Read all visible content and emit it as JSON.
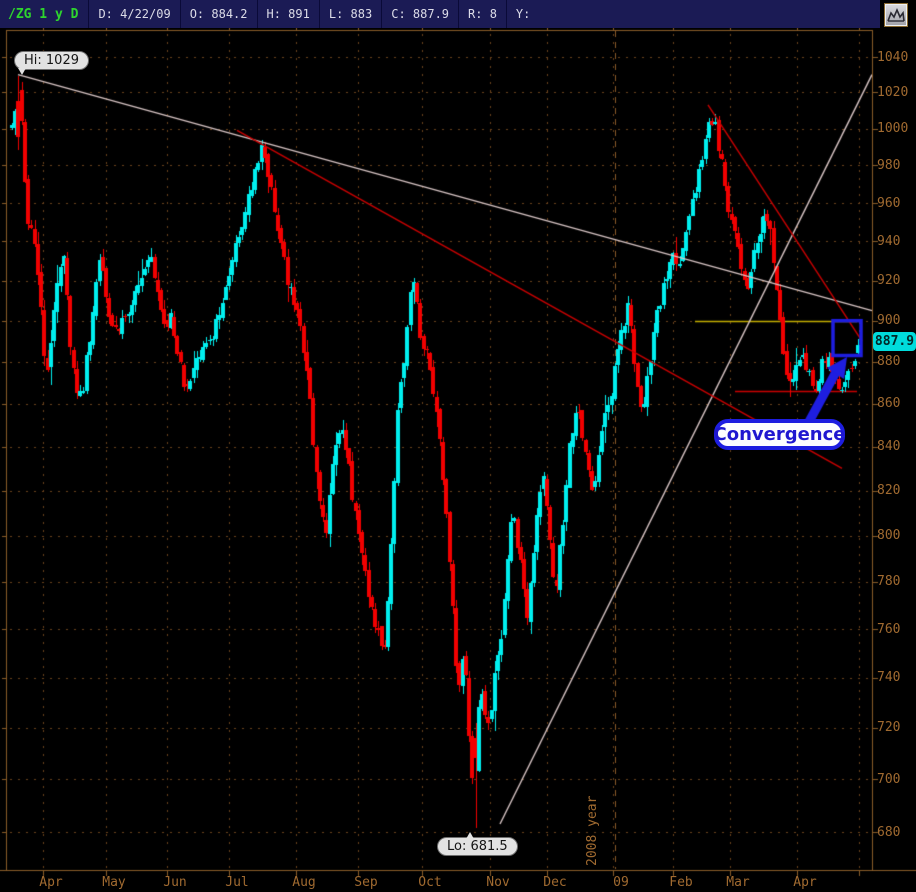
{
  "header": {
    "symbol": "/ZG 1 y D",
    "fields": [
      "D: 4/22/09",
      "O: 884.2",
      "H: 891",
      "L: 883",
      "C: 887.9",
      "R: 8",
      "Y:"
    ]
  },
  "toolbar": {
    "chart_button_icon": "chart-icon"
  },
  "annotations": {
    "hi_label": "Hi: 1029",
    "lo_label": "Lo: 681.5",
    "price_tag": "887.9",
    "convergence_label": "Convergence",
    "year_label": "2008 year"
  },
  "colors": {
    "background": "#000000",
    "header_bg": "#1b1b55",
    "header_text": "#dcdce8",
    "symbol_green": "#2ed52e",
    "axis_text": "#a06a30",
    "frame": "#8a5c28",
    "grid": "#6b431d",
    "year_line": "#8a5a28",
    "candle_up": "#00efef",
    "candle_down": "#f20000",
    "trend_white": "#d9c6c6",
    "trend_red": "#cc0000",
    "level_yellow": "#c4ae00",
    "annotation_blue": "#1e1ee0",
    "price_tag_bg": "#00dcdc"
  },
  "chart_data": {
    "type": "candlestick",
    "symbol": "/ZG",
    "range": "1 y",
    "interval": "D",
    "scale": "log",
    "grid": true,
    "ylim": [
      680,
      1040
    ],
    "ytick_step": 20,
    "high_52w": 1029,
    "low_52w": 681.5,
    "last_quote": {
      "date": "4/22/09",
      "open": 884.2,
      "high": 891,
      "low": 883,
      "close": 887.9,
      "range": 8
    },
    "months": [
      [
        "Apr",
        43
      ],
      [
        "May",
        106
      ],
      [
        "Jun",
        167
      ],
      [
        "Jul",
        229
      ],
      [
        "Aug",
        296
      ],
      [
        "Sep",
        358
      ],
      [
        "Oct",
        422
      ],
      [
        "Nov",
        490
      ],
      [
        "Dec",
        547
      ],
      [
        "09",
        613
      ],
      [
        "Feb",
        673
      ],
      [
        "Mar",
        730
      ],
      [
        "Apr",
        797
      ],
      [
        "",
        859
      ]
    ],
    "year_divider_x": 615,
    "candle_count": 262,
    "x_range": [
      12,
      858
    ],
    "price_path_anchors": [
      [
        12,
        1000
      ],
      [
        20,
        1024
      ],
      [
        27,
        950
      ],
      [
        34,
        940
      ],
      [
        40,
        915
      ],
      [
        46,
        870
      ],
      [
        52,
        895
      ],
      [
        58,
        922
      ],
      [
        64,
        930
      ],
      [
        70,
        890
      ],
      [
        76,
        868
      ],
      [
        82,
        862
      ],
      [
        88,
        885
      ],
      [
        95,
        915
      ],
      [
        101,
        933
      ],
      [
        107,
        910
      ],
      [
        113,
        898
      ],
      [
        119,
        893
      ],
      [
        126,
        903
      ],
      [
        133,
        912
      ],
      [
        141,
        922
      ],
      [
        150,
        933
      ],
      [
        157,
        918
      ],
      [
        164,
        897
      ],
      [
        171,
        903
      ],
      [
        178,
        882
      ],
      [
        185,
        866
      ],
      [
        192,
        874
      ],
      [
        199,
        880
      ],
      [
        207,
        888
      ],
      [
        214,
        895
      ],
      [
        222,
        904
      ],
      [
        232,
        928
      ],
      [
        243,
        952
      ],
      [
        252,
        970
      ],
      [
        262,
        988
      ],
      [
        270,
        968
      ],
      [
        280,
        940
      ],
      [
        290,
        915
      ],
      [
        300,
        903
      ],
      [
        310,
        862
      ],
      [
        318,
        820
      ],
      [
        326,
        800
      ],
      [
        335,
        838
      ],
      [
        343,
        849
      ],
      [
        352,
        820
      ],
      [
        360,
        797
      ],
      [
        368,
        776
      ],
      [
        376,
        762
      ],
      [
        385,
        752
      ],
      [
        392,
        800
      ],
      [
        398,
        860
      ],
      [
        405,
        885
      ],
      [
        413,
        925
      ],
      [
        420,
        895
      ],
      [
        428,
        880
      ],
      [
        436,
        858
      ],
      [
        444,
        820
      ],
      [
        452,
        775
      ],
      [
        458,
        730
      ],
      [
        464,
        755
      ],
      [
        469,
        715
      ],
      [
        474,
        690
      ],
      [
        480,
        735
      ],
      [
        488,
        720
      ],
      [
        496,
        742
      ],
      [
        503,
        762
      ],
      [
        512,
        812
      ],
      [
        520,
        790
      ],
      [
        527,
        766
      ],
      [
        535,
        800
      ],
      [
        542,
        830
      ],
      [
        548,
        812
      ],
      [
        555,
        776
      ],
      [
        562,
        800
      ],
      [
        570,
        845
      ],
      [
        578,
        860
      ],
      [
        585,
        838
      ],
      [
        592,
        820
      ],
      [
        600,
        838
      ],
      [
        607,
        860
      ],
      [
        613,
        868
      ],
      [
        620,
        895
      ],
      [
        628,
        905
      ],
      [
        635,
        880
      ],
      [
        642,
        855
      ],
      [
        650,
        880
      ],
      [
        658,
        905
      ],
      [
        665,
        920
      ],
      [
        672,
        932
      ],
      [
        680,
        925
      ],
      [
        688,
        948
      ],
      [
        695,
        965
      ],
      [
        703,
        985
      ],
      [
        710,
        1008
      ],
      [
        715,
        1000
      ],
      [
        722,
        982
      ],
      [
        728,
        960
      ],
      [
        735,
        945
      ],
      [
        742,
        920
      ],
      [
        748,
        912
      ],
      [
        755,
        935
      ],
      [
        762,
        950
      ],
      [
        768,
        955
      ],
      [
        774,
        930
      ],
      [
        780,
        900
      ],
      [
        786,
        872
      ],
      [
        792,
        868
      ],
      [
        798,
        885
      ],
      [
        804,
        880
      ],
      [
        810,
        872
      ],
      [
        816,
        866
      ],
      [
        822,
        880
      ],
      [
        828,
        884
      ],
      [
        834,
        872
      ],
      [
        840,
        868
      ],
      [
        846,
        872
      ],
      [
        852,
        880
      ],
      [
        858,
        888
      ]
    ],
    "candle_overrides": [
      {
        "x": 20,
        "open": 1015,
        "high": 1029,
        "low": 988,
        "close": 995
      },
      {
        "x": 474,
        "open": 716,
        "high": 722,
        "low": 681.5,
        "close": 708
      },
      {
        "x": 858,
        "open": 884.2,
        "high": 891,
        "low": 883,
        "close": 887.9
      }
    ],
    "trendlines": [
      {
        "name": "downtrend-from-2008-high",
        "color": "#d9c6c6",
        "points": [
          [
            18,
            1030
          ],
          [
            872,
            905
          ]
        ]
      },
      {
        "name": "uptrend-from-2008-low",
        "color": "#d9c6c6",
        "points": [
          [
            500,
            683
          ],
          [
            872,
            1030
          ]
        ]
      },
      {
        "name": "long-red-downtrend",
        "color": "#cc0000",
        "points": [
          [
            237,
            999
          ],
          [
            842,
            830
          ]
        ]
      },
      {
        "name": "feb-peak-red-downtrend",
        "color": "#cc0000",
        "points": [
          [
            708,
            1013
          ],
          [
            862,
            890
          ]
        ]
      }
    ],
    "h_segments": [
      {
        "name": "yellow-resistance-900",
        "color": "#c4ae00",
        "price": 900,
        "x1": 695,
        "x2": 857,
        "width": 1.5
      },
      {
        "name": "red-support-866",
        "color": "#cc0000",
        "price": 866,
        "x1": 735,
        "x2": 857,
        "width": 1.5
      }
    ],
    "highlight_box": {
      "x1": 833,
      "x2": 861,
      "p_top": 900,
      "p_bottom": 883
    }
  }
}
